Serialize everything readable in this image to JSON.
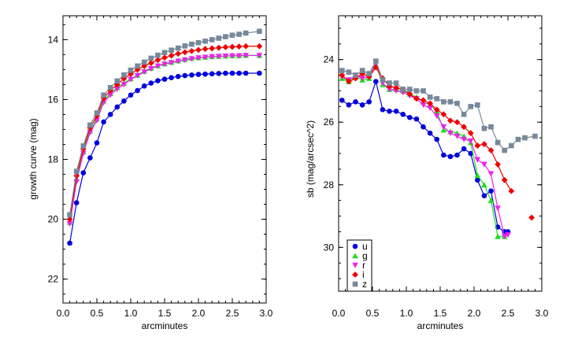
{
  "chart_data": [
    {
      "type": "line",
      "xlabel": "arcminutes",
      "ylabel": "growth curve (mag)",
      "xlim": [
        0.0,
        3.0
      ],
      "ylim": [
        22.8,
        13.2
      ],
      "y_inverted": true,
      "x_ticks": [
        "0.0",
        "0.5",
        "1.0",
        "1.5",
        "2.0",
        "2.5",
        "3.0"
      ],
      "y_ticks": [
        "14",
        "16",
        "18",
        "20",
        "22"
      ],
      "x": [
        0.1,
        0.2,
        0.3,
        0.4,
        0.5,
        0.6,
        0.7,
        0.8,
        0.9,
        1.0,
        1.1,
        1.2,
        1.3,
        1.4,
        1.5,
        1.6,
        1.7,
        1.8,
        1.9,
        2.0,
        2.1,
        2.2,
        2.3,
        2.4,
        2.5,
        2.6,
        2.7,
        2.9
      ],
      "series": [
        {
          "name": "u",
          "color": "#0000dd",
          "marker": "circle",
          "values": [
            20.8,
            19.45,
            18.45,
            17.95,
            17.45,
            16.75,
            16.5,
            16.25,
            16.05,
            15.85,
            15.7,
            15.55,
            15.45,
            15.37,
            15.32,
            15.27,
            15.23,
            15.2,
            15.18,
            15.16,
            15.15,
            15.14,
            15.13,
            15.12,
            15.12,
            15.12,
            15.12,
            15.12
          ]
        },
        {
          "name": "g",
          "color": "#22dd22",
          "marker": "triangle-up",
          "values": [
            20.1,
            18.65,
            17.75,
            17.05,
            16.65,
            16.05,
            15.8,
            15.6,
            15.45,
            15.3,
            15.18,
            15.05,
            14.95,
            14.87,
            14.8,
            14.75,
            14.7,
            14.66,
            14.62,
            14.6,
            14.58,
            14.56,
            14.55,
            14.54,
            14.53,
            14.53,
            14.52,
            14.52
          ]
        },
        {
          "name": "r",
          "color": "#ee22ee",
          "marker": "triangle-down",
          "values": [
            20.15,
            18.75,
            17.8,
            17.1,
            16.7,
            16.1,
            15.85,
            15.65,
            15.5,
            15.33,
            15.2,
            15.08,
            14.97,
            14.88,
            14.82,
            14.77,
            14.72,
            14.68,
            14.64,
            14.61,
            14.59,
            14.57,
            14.56,
            14.55,
            14.54,
            14.54,
            14.53,
            14.53
          ]
        },
        {
          "name": "i",
          "color": "#ee0000",
          "marker": "diamond",
          "values": [
            20.0,
            18.55,
            17.65,
            16.95,
            16.55,
            15.95,
            15.7,
            15.5,
            15.3,
            15.15,
            15.0,
            14.88,
            14.78,
            14.68,
            14.6,
            14.53,
            14.47,
            14.42,
            14.38,
            14.34,
            14.31,
            14.29,
            14.27,
            14.25,
            14.24,
            14.23,
            14.22,
            14.22
          ]
        },
        {
          "name": "z",
          "color": "#778899",
          "marker": "square",
          "values": [
            19.85,
            18.4,
            17.55,
            16.85,
            16.45,
            15.85,
            15.6,
            15.38,
            15.18,
            15.02,
            14.88,
            14.75,
            14.62,
            14.52,
            14.43,
            14.35,
            14.28,
            14.21,
            14.15,
            14.1,
            14.05,
            14.0,
            13.95,
            13.9,
            13.85,
            13.82,
            13.78,
            13.72
          ]
        }
      ]
    },
    {
      "type": "line",
      "xlabel": "arcminutes",
      "ylabel": "sb (mag/arcsec^2)",
      "xlim": [
        0.0,
        3.0
      ],
      "ylim": [
        31.4,
        22.6
      ],
      "y_inverted": true,
      "x_ticks": [
        "0.0",
        "0.5",
        "1.0",
        "1.5",
        "2.0",
        "2.5",
        "3.0"
      ],
      "y_ticks": [
        "24",
        "26",
        "28",
        "30"
      ],
      "legend": {
        "position": "bottom-left",
        "entries": [
          "u",
          "g",
          "r",
          "i",
          "z"
        ]
      },
      "series": [
        {
          "name": "u",
          "color": "#0000dd",
          "marker": "circle",
          "x": [
            0.05,
            0.15,
            0.25,
            0.35,
            0.45,
            0.55,
            0.65,
            0.75,
            0.85,
            0.95,
            1.05,
            1.15,
            1.25,
            1.35,
            1.45,
            1.55,
            1.65,
            1.75,
            1.85,
            1.95,
            2.05,
            2.15,
            2.25,
            2.35,
            2.45,
            2.5
          ],
          "values": [
            25.3,
            25.45,
            25.35,
            25.45,
            25.35,
            24.7,
            25.6,
            25.65,
            25.65,
            25.75,
            25.85,
            25.9,
            26.15,
            26.35,
            26.55,
            27.05,
            27.1,
            27.05,
            26.85,
            27.0,
            27.85,
            28.35,
            28.2,
            29.35,
            29.5,
            29.5
          ]
        },
        {
          "name": "g",
          "color": "#22dd22",
          "marker": "triangle-up",
          "x": [
            0.05,
            0.15,
            0.25,
            0.35,
            0.45,
            0.55,
            0.65,
            0.75,
            0.85,
            0.95,
            1.05,
            1.15,
            1.25,
            1.35,
            1.45,
            1.55,
            1.65,
            1.75,
            1.85,
            1.95,
            2.05,
            2.15,
            2.25,
            2.35,
            2.45
          ],
          "values": [
            24.6,
            24.7,
            24.55,
            24.65,
            24.6,
            24.15,
            24.8,
            24.95,
            24.95,
            25.0,
            25.1,
            25.2,
            25.35,
            25.45,
            25.65,
            26.25,
            26.3,
            26.35,
            26.45,
            26.65,
            27.7,
            28.0,
            28.5,
            29.65,
            29.65
          ]
        },
        {
          "name": "r",
          "color": "#ee22ee",
          "marker": "triangle-down",
          "x": [
            0.05,
            0.15,
            0.25,
            0.35,
            0.45,
            0.55,
            0.65,
            0.75,
            0.85,
            0.95,
            1.05,
            1.15,
            1.25,
            1.35,
            1.45,
            1.55,
            1.65,
            1.75,
            1.85,
            1.95,
            2.05,
            2.15,
            2.25,
            2.35,
            2.45,
            2.5
          ],
          "values": [
            24.55,
            24.65,
            24.5,
            24.6,
            24.55,
            24.1,
            24.75,
            24.95,
            25.0,
            25.05,
            25.15,
            25.25,
            25.45,
            25.55,
            25.8,
            26.15,
            26.35,
            26.45,
            26.55,
            26.6,
            27.2,
            27.35,
            27.65,
            28.75,
            29.65,
            29.6
          ]
        },
        {
          "name": "i",
          "color": "#ee0000",
          "marker": "diamond",
          "x": [
            0.05,
            0.15,
            0.25,
            0.35,
            0.45,
            0.55,
            0.65,
            0.75,
            0.85,
            0.95,
            1.05,
            1.15,
            1.25,
            1.35,
            1.45,
            1.55,
            1.65,
            1.75,
            1.85,
            1.95,
            2.05,
            2.15,
            2.25,
            2.35,
            2.45,
            2.55
          ],
          "values": [
            24.5,
            24.7,
            24.6,
            24.45,
            24.55,
            24.25,
            24.6,
            24.85,
            24.9,
            24.95,
            25.1,
            25.25,
            25.3,
            25.4,
            25.6,
            25.75,
            25.95,
            26.0,
            26.15,
            26.35,
            26.75,
            26.7,
            26.9,
            27.35,
            27.85,
            28.2
          ]
        },
        {
          "name": "i",
          "color": "#ee0000",
          "marker": "diamond",
          "x": [
            2.85
          ],
          "values": [
            29.05
          ]
        },
        {
          "name": "z",
          "color": "#778899",
          "marker": "square",
          "x": [
            0.05,
            0.15,
            0.25,
            0.35,
            0.45,
            0.55,
            0.65,
            0.75,
            0.85,
            0.95,
            1.05,
            1.15,
            1.25,
            1.35,
            1.45,
            1.55,
            1.65,
            1.75,
            1.85,
            1.95,
            2.05,
            2.15,
            2.25,
            2.35,
            2.45,
            2.55,
            2.65,
            2.75,
            2.9
          ],
          "values": [
            24.35,
            24.4,
            24.5,
            24.35,
            24.45,
            24.05,
            24.65,
            24.75,
            24.75,
            24.95,
            24.95,
            25.0,
            25.0,
            25.2,
            25.25,
            25.35,
            25.35,
            25.4,
            25.75,
            25.5,
            25.45,
            26.2,
            26.15,
            26.65,
            26.9,
            26.75,
            26.55,
            26.5,
            26.45
          ]
        }
      ]
    }
  ]
}
